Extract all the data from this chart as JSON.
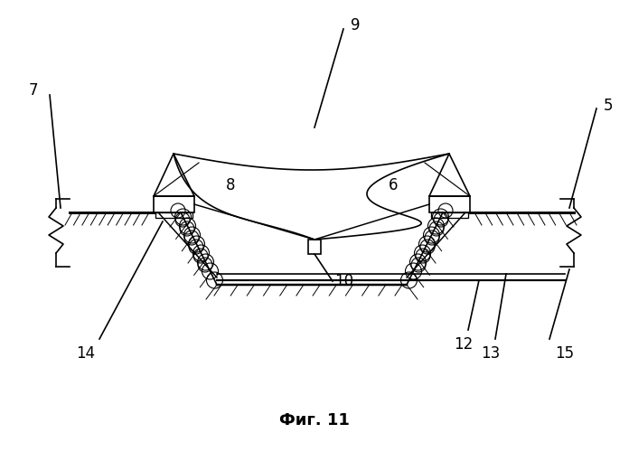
{
  "title": "Фиг. 11",
  "background": "#ffffff",
  "line_color": "#000000",
  "lw": 1.2
}
